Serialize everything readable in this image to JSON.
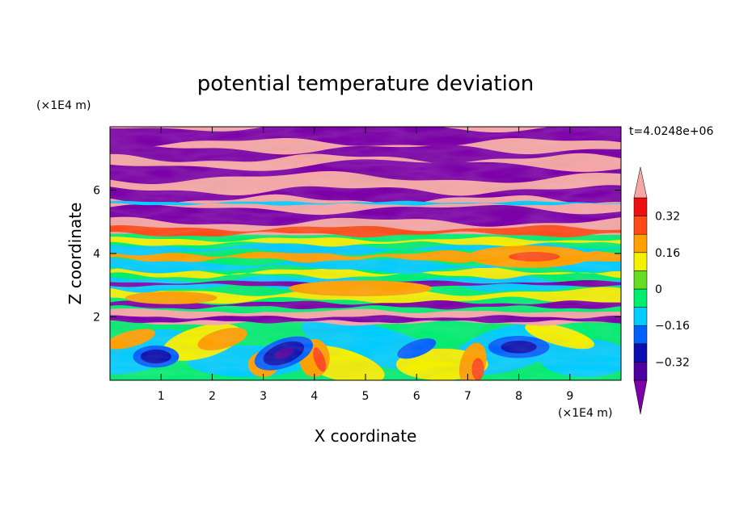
{
  "chart_data": {
    "type": "heatmap",
    "title": "potential temperature deviation",
    "xlabel": "X coordinate",
    "ylabel": "Z coordinate",
    "x_unit": "(×1E4 m)",
    "y_unit": "(×1E4 m)",
    "time_label": "t=4.0248e+06",
    "xlim": [
      0,
      10
    ],
    "ylim": [
      0,
      8
    ],
    "x_ticks": [
      {
        "value": 1,
        "label": "1"
      },
      {
        "value": 2,
        "label": "2"
      },
      {
        "value": 3,
        "label": "3"
      },
      {
        "value": 4,
        "label": "4"
      },
      {
        "value": 5,
        "label": "5"
      },
      {
        "value": 6,
        "label": "6"
      },
      {
        "value": 7,
        "label": "7"
      },
      {
        "value": 8,
        "label": "8"
      },
      {
        "value": 9,
        "label": "9"
      }
    ],
    "y_ticks": [
      {
        "value": 2,
        "label": "2"
      },
      {
        "value": 4,
        "label": "4"
      },
      {
        "value": 6,
        "label": "6"
      }
    ],
    "colorbar": {
      "levels": [
        -0.4,
        -0.32,
        -0.24,
        -0.16,
        -0.08,
        0,
        0.08,
        0.16,
        0.24,
        0.32,
        0.4
      ],
      "colors": [
        "#7c00a8",
        "#4d00a0",
        "#0b0fb0",
        "#0061ff",
        "#00cdff",
        "#00ee70",
        "#66dd22",
        "#f3f000",
        "#ffa000",
        "#ff4a18",
        "#ed1010",
        "#f7a6a6"
      ],
      "tick_labels": [
        {
          "value": -0.32,
          "label": "−0.32"
        },
        {
          "value": -0.16,
          "label": "−0.16"
        },
        {
          "value": 0,
          "label": "0"
        },
        {
          "value": 0.16,
          "label": "0.16"
        },
        {
          "value": 0.32,
          "label": "0.32"
        }
      ],
      "extend": "both"
    },
    "field_description": {
      "z_0_to_1.8": "mixed green, cyan, yellow with blue convective cells near x=0.9, 3.4, 8 and orange plumes",
      "z_1.8_to_2.2": "pink band with purple streaks",
      "z_2.2_to_4.6": "layered green, cyan, yellow and orange filaments",
      "z_4.6_to_8": "alternating pink and purple horizontal bands"
    }
  }
}
